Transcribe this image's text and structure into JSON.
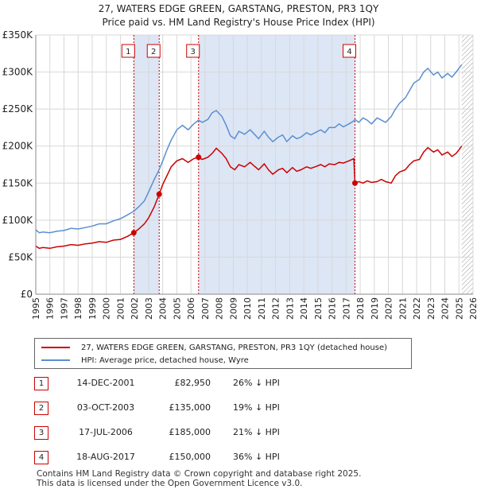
{
  "title_line1": "27, WATERS EDGE GREEN, GARSTANG, PRESTON, PR3 1QY",
  "title_line2": "Price paid vs. HM Land Registry's House Price Index (HPI)",
  "colors": {
    "property": "#cc0000",
    "hpi": "#5b8fd0",
    "shade": "#dde6f5",
    "marker_border": "#cc0000",
    "grid": "#d8d8d8"
  },
  "legend": {
    "property_label": "27, WATERS EDGE GREEN, GARSTANG, PRESTON, PR3 1QY (detached house)",
    "hpi_label": "HPI: Average price, detached house, Wyre"
  },
  "sales": [
    {
      "num": "1",
      "date": "14-DEC-2001",
      "price": "£82,950",
      "hpi_diff": "26% ↓ HPI"
    },
    {
      "num": "2",
      "date": "03-OCT-2003",
      "price": "£135,000",
      "hpi_diff": "19% ↓ HPI"
    },
    {
      "num": "3",
      "date": "17-JUL-2006",
      "price": "£185,000",
      "hpi_diff": "21% ↓ HPI"
    },
    {
      "num": "4",
      "date": "18-AUG-2017",
      "price": "£150,000",
      "hpi_diff": "36% ↓ HPI"
    }
  ],
  "footer_line1": "Contains HM Land Registry data © Crown copyright and database right 2025.",
  "footer_line2": "This data is licensed under the Open Government Licence v3.0.",
  "chart_data": {
    "type": "line",
    "title": "27, WATERS EDGE GREEN, GARSTANG, PRESTON, PR3 1QY — Price paid vs. HM Land Registry's House Price Index (HPI)",
    "xlabel": "",
    "ylabel": "",
    "xlim": [
      1995,
      2026
    ],
    "ylim": [
      0,
      350000
    ],
    "x_ticks": [
      1995,
      1996,
      1997,
      1998,
      1999,
      2000,
      2001,
      2002,
      2003,
      2004,
      2005,
      2006,
      2007,
      2008,
      2009,
      2010,
      2011,
      2012,
      2013,
      2014,
      2015,
      2016,
      2017,
      2018,
      2019,
      2020,
      2021,
      2022,
      2023,
      2024,
      2025,
      2026
    ],
    "y_ticks": [
      0,
      50000,
      100000,
      150000,
      200000,
      250000,
      300000,
      350000
    ],
    "y_tick_labels": [
      "£0",
      "£50K",
      "£100K",
      "£150K",
      "£200K",
      "£250K",
      "£300K",
      "£350K"
    ],
    "grid": true,
    "shaded_spans": [
      [
        2001.95,
        2003.75
      ],
      [
        2006.54,
        2017.63
      ]
    ],
    "hatched_from": 2025.2,
    "series": [
      {
        "name": "27, WATERS EDGE GREEN, GARSTANG, PRESTON, PR3 1QY (detached house)",
        "x": [
          1995.0,
          1995.25,
          1995.5,
          1996.0,
          1996.5,
          1997.0,
          1997.5,
          1998.0,
          1998.5,
          1999.0,
          1999.5,
          2000.0,
          2000.5,
          2001.0,
          2001.5,
          2001.95,
          2002.3,
          2002.7,
          2003.0,
          2003.4,
          2003.75,
          2004.0,
          2004.3,
          2004.6,
          2005.0,
          2005.4,
          2005.8,
          2006.2,
          2006.54,
          2006.8,
          2007.2,
          2007.5,
          2007.8,
          2008.2,
          2008.5,
          2008.8,
          2009.1,
          2009.4,
          2009.8,
          2010.2,
          2010.5,
          2010.8,
          2011.2,
          2011.5,
          2011.8,
          2012.2,
          2012.5,
          2012.8,
          2013.2,
          2013.5,
          2013.8,
          2014.2,
          2014.5,
          2014.8,
          2015.2,
          2015.5,
          2015.8,
          2016.2,
          2016.5,
          2016.8,
          2017.2,
          2017.55,
          2017.63,
          2017.9,
          2018.2,
          2018.5,
          2018.8,
          2019.2,
          2019.5,
          2019.8,
          2020.2,
          2020.5,
          2020.8,
          2021.2,
          2021.5,
          2021.8,
          2022.2,
          2022.5,
          2022.8,
          2023.2,
          2023.5,
          2023.8,
          2024.2,
          2024.5,
          2024.8,
          2025.0,
          2025.2
        ],
        "values": [
          65000,
          62000,
          63000,
          62000,
          64000,
          65000,
          67000,
          66000,
          68000,
          69000,
          71000,
          70000,
          73000,
          74000,
          78000,
          82950,
          88000,
          95000,
          103000,
          118000,
          135000,
          148000,
          160000,
          172000,
          180000,
          183000,
          178000,
          183000,
          185000,
          182000,
          185000,
          190000,
          197000,
          190000,
          183000,
          172000,
          168000,
          175000,
          172000,
          178000,
          173000,
          168000,
          176000,
          168000,
          162000,
          168000,
          170000,
          164000,
          171000,
          166000,
          168000,
          172000,
          170000,
          172000,
          175000,
          172000,
          176000,
          175000,
          178000,
          177000,
          180000,
          183000,
          150000,
          152000,
          150000,
          153000,
          151000,
          152000,
          155000,
          152000,
          150000,
          160000,
          165000,
          168000,
          175000,
          180000,
          182000,
          192000,
          198000,
          192000,
          195000,
          188000,
          192000,
          186000,
          190000,
          195000,
          200000
        ]
      },
      {
        "name": "HPI: Average price, detached house, Wyre",
        "x": [
          1995.0,
          1995.25,
          1995.5,
          1996.0,
          1996.5,
          1997.0,
          1997.5,
          1998.0,
          1998.5,
          1999.0,
          1999.5,
          2000.0,
          2000.5,
          2001.0,
          2001.5,
          2001.95,
          2002.3,
          2002.7,
          2003.0,
          2003.4,
          2003.75,
          2004.0,
          2004.3,
          2004.6,
          2005.0,
          2005.4,
          2005.8,
          2006.2,
          2006.54,
          2006.8,
          2007.2,
          2007.5,
          2007.8,
          2008.2,
          2008.5,
          2008.8,
          2009.1,
          2009.4,
          2009.8,
          2010.2,
          2010.5,
          2010.8,
          2011.2,
          2011.5,
          2011.8,
          2012.2,
          2012.5,
          2012.8,
          2013.2,
          2013.5,
          2013.8,
          2014.2,
          2014.5,
          2014.8,
          2015.2,
          2015.5,
          2015.8,
          2016.2,
          2016.5,
          2016.8,
          2017.2,
          2017.55,
          2017.63,
          2017.9,
          2018.2,
          2018.5,
          2018.8,
          2019.2,
          2019.5,
          2019.8,
          2020.2,
          2020.5,
          2020.8,
          2021.2,
          2021.5,
          2021.8,
          2022.2,
          2022.5,
          2022.8,
          2023.2,
          2023.5,
          2023.8,
          2024.2,
          2024.5,
          2024.8,
          2025.0,
          2025.2
        ],
        "values": [
          87000,
          83000,
          84000,
          83000,
          85000,
          86000,
          89000,
          88000,
          90000,
          92000,
          95000,
          95000,
          99000,
          102000,
          107000,
          112000,
          118000,
          126000,
          138000,
          155000,
          168000,
          180000,
          195000,
          208000,
          222000,
          228000,
          222000,
          230000,
          235000,
          232000,
          236000,
          245000,
          248000,
          240000,
          228000,
          214000,
          210000,
          220000,
          216000,
          222000,
          216000,
          210000,
          220000,
          212000,
          206000,
          212000,
          215000,
          206000,
          214000,
          210000,
          212000,
          218000,
          215000,
          218000,
          222000,
          218000,
          225000,
          225000,
          230000,
          226000,
          230000,
          234000,
          236000,
          232000,
          238000,
          235000,
          230000,
          238000,
          235000,
          232000,
          240000,
          250000,
          258000,
          265000,
          275000,
          285000,
          290000,
          300000,
          305000,
          296000,
          300000,
          292000,
          298000,
          293000,
          300000,
          305000,
          310000
        ]
      }
    ],
    "sale_markers": [
      {
        "label": "1",
        "x": 2001.95,
        "y": 82950
      },
      {
        "label": "2",
        "x": 2003.75,
        "y": 135000
      },
      {
        "label": "3",
        "x": 2006.54,
        "y": 185000
      },
      {
        "label": "4",
        "x": 2017.63,
        "y": 150000
      }
    ]
  }
}
